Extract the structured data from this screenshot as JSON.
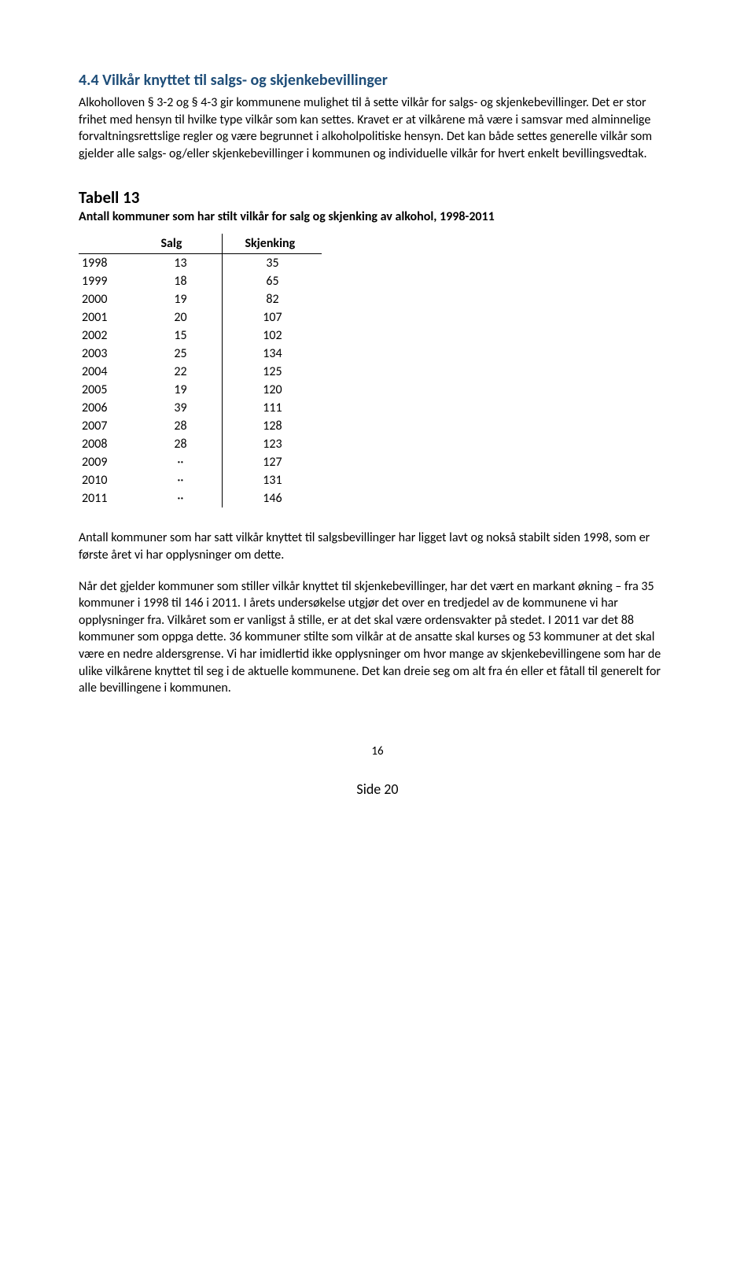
{
  "section": {
    "heading": "4.4 Vilkår knyttet til salgs- og skjenkebevillinger",
    "para1": "Alkoholloven § 3-2 og § 4-3 gir kommunene mulighet til å sette vilkår for salgs- og skjenkebevillinger. Det er stor frihet med hensyn til hvilke type vilkår som kan settes. Kravet er at vilkårene må være i samsvar med alminnelige forvaltningsrettslige regler og være begrunnet i alkoholpolitiske hensyn. Det kan både settes generelle vilkår som gjelder alle salgs- og/eller skjenkebevillinger i kommunen og individuelle vilkår for hvert enkelt bevillingsvedtak."
  },
  "table": {
    "label": "Tabell 13",
    "subtitle": "Antall kommuner som har stilt vilkår for salg og skjenking av alkohol, 1998-2011",
    "columns": {
      "salg": "Salg",
      "skjenking": "Skjenking"
    },
    "rows": [
      {
        "year": "1998",
        "salg": "13",
        "skjenking": "35"
      },
      {
        "year": "1999",
        "salg": "18",
        "skjenking": "65"
      },
      {
        "year": "2000",
        "salg": "19",
        "skjenking": "82"
      },
      {
        "year": "2001",
        "salg": "20",
        "skjenking": "107"
      },
      {
        "year": "2002",
        "salg": "15",
        "skjenking": "102"
      },
      {
        "year": "2003",
        "salg": "25",
        "skjenking": "134"
      },
      {
        "year": "2004",
        "salg": "22",
        "skjenking": "125"
      },
      {
        "year": "2005",
        "salg": "19",
        "skjenking": "120"
      },
      {
        "year": "2006",
        "salg": "39",
        "skjenking": "111"
      },
      {
        "year": "2007",
        "salg": "28",
        "skjenking": "128"
      },
      {
        "year": "2008",
        "salg": "28",
        "skjenking": "123"
      },
      {
        "year": "2009",
        "salg": "··",
        "skjenking": "127"
      },
      {
        "year": "2010",
        "salg": "··",
        "skjenking": "131"
      },
      {
        "year": "2011",
        "salg": "··",
        "skjenking": "146"
      }
    ]
  },
  "after": {
    "para2": "Antall kommuner som har satt vilkår knyttet til salgsbevillinger har ligget lavt og nokså stabilt siden 1998, som er første året vi har opplysninger om dette.",
    "para3": "Når det gjelder kommuner som stiller vilkår knyttet til skjenkebevillinger, har det vært en markant økning – fra 35 kommuner i 1998 til 146 i 2011. I årets undersøkelse utgjør det over en tredjedel av de kommunene vi har opplysninger fra. Vilkåret som er vanligst å stille, er at det skal være ordensvakter på stedet.  I 2011 var det 88 kommuner som oppga dette. 36 kommuner stilte som vilkår at de ansatte skal kurses og 53 kommuner at det skal være en nedre aldersgrense. Vi har imidlertid ikke opplysninger om hvor mange av skjenkebevillingene som har de ulike vilkårene knyttet til seg i de aktuelle kommunene. Det kan dreie seg om alt fra én eller et fåtall til generelt for alle bevillingene i kommunen."
  },
  "footer": {
    "page_number": "16",
    "side": "Side 20"
  }
}
